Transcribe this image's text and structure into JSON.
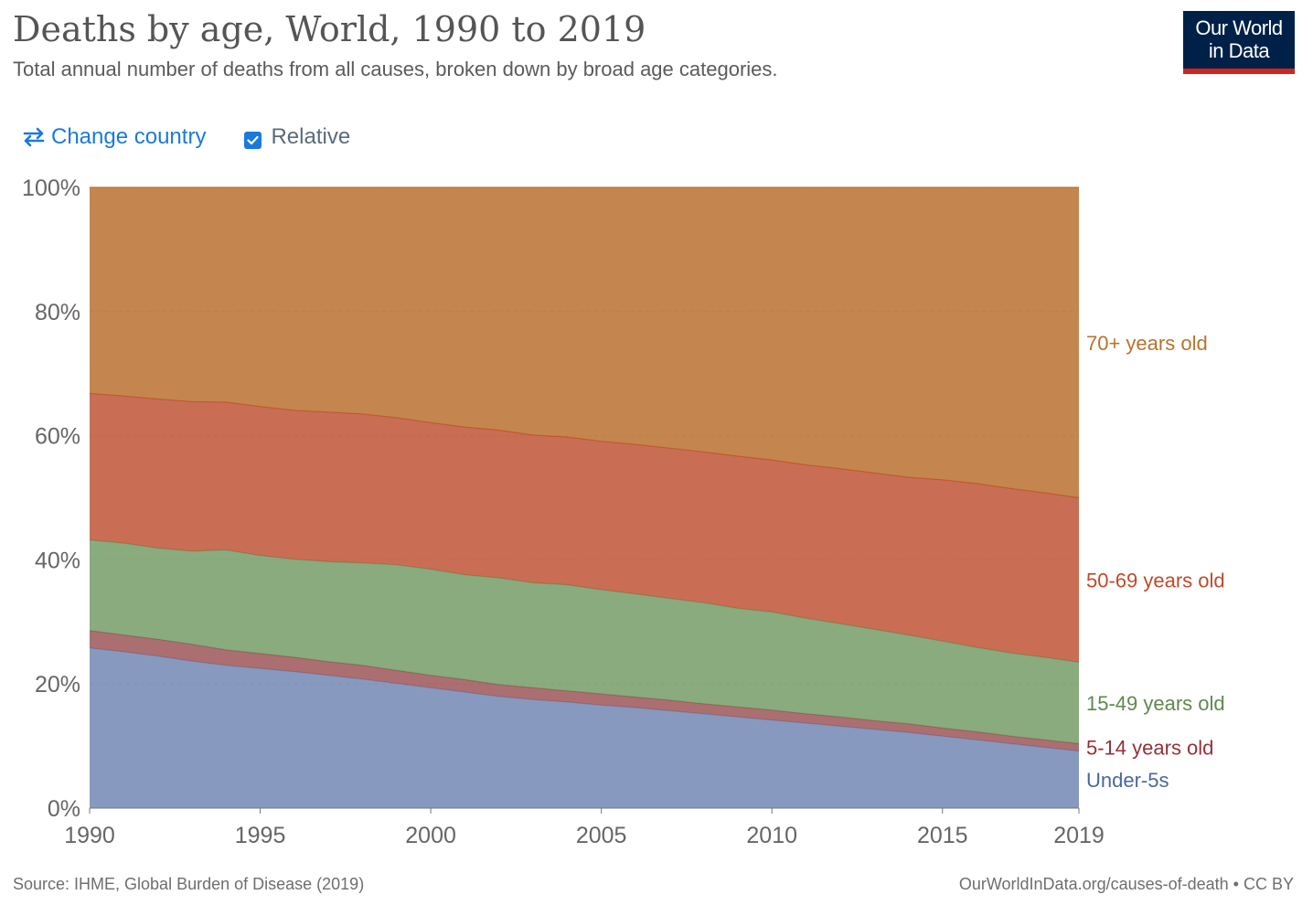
{
  "header": {
    "title": "Deaths by age, World, 1990 to 2019",
    "subtitle": "Total annual number of deaths from all causes, broken down by broad age categories.",
    "logo_line1": "Our World",
    "logo_line2": "in Data"
  },
  "controls": {
    "change_country_label": "Change country",
    "relative_label": "Relative",
    "relative_checked": true
  },
  "footer": {
    "source": "Source: IHME, Global Burden of Disease (2019)",
    "credit": "OurWorldInData.org/causes-of-death • CC BY"
  },
  "chart_data": {
    "type": "area",
    "stacked": true,
    "relative": true,
    "ylim": [
      0,
      100
    ],
    "y_ticks": [
      0,
      20,
      40,
      60,
      80,
      100
    ],
    "y_tick_labels": [
      "0%",
      "20%",
      "40%",
      "60%",
      "80%",
      "100%"
    ],
    "xlim": [
      1990,
      2019
    ],
    "x_ticks": [
      1990,
      1995,
      2000,
      2005,
      2010,
      2015,
      2019
    ],
    "x_tick_labels": [
      "1990",
      "1995",
      "2000",
      "2005",
      "2010",
      "2015",
      "2019"
    ],
    "x": [
      1990,
      1991,
      1992,
      1993,
      1994,
      1995,
      1996,
      1997,
      1998,
      1999,
      2000,
      2001,
      2002,
      2003,
      2004,
      2005,
      2006,
      2007,
      2008,
      2009,
      2010,
      2011,
      2012,
      2013,
      2014,
      2015,
      2016,
      2017,
      2018,
      2019
    ],
    "series": [
      {
        "name": "Under-5s",
        "color": "#6d83b0",
        "values": [
          25.8,
          25.2,
          24.5,
          23.7,
          23.0,
          22.5,
          22.0,
          21.4,
          20.8,
          20.1,
          19.4,
          18.7,
          18.0,
          17.5,
          17.1,
          16.6,
          16.2,
          15.7,
          15.2,
          14.7,
          14.2,
          13.7,
          13.2,
          12.7,
          12.2,
          11.6,
          11.0,
          10.4,
          9.8,
          9.2
        ]
      },
      {
        "name": "5-14 years old",
        "color": "#9a4f52",
        "values": [
          2.8,
          2.7,
          2.7,
          2.7,
          2.5,
          2.4,
          2.3,
          2.2,
          2.2,
          2.1,
          2.0,
          2.0,
          1.9,
          1.9,
          1.8,
          1.8,
          1.7,
          1.7,
          1.6,
          1.6,
          1.6,
          1.5,
          1.5,
          1.4,
          1.4,
          1.3,
          1.3,
          1.2,
          1.2,
          1.2
        ]
      },
      {
        "name": "15-49 years old",
        "color": "#6f9962",
        "values": [
          14.6,
          14.8,
          14.7,
          15.0,
          16.1,
          15.8,
          15.8,
          16.1,
          16.5,
          17.0,
          17.1,
          16.9,
          17.2,
          16.9,
          17.1,
          16.8,
          16.6,
          16.4,
          16.3,
          15.9,
          15.8,
          15.4,
          15.0,
          14.7,
          14.3,
          14.0,
          13.6,
          13.4,
          13.3,
          13.1
        ]
      },
      {
        "name": "50-69 years old",
        "color": "#bd4e2f",
        "values": [
          23.6,
          23.7,
          24.0,
          24.1,
          23.8,
          24.0,
          24.0,
          24.1,
          24.0,
          23.7,
          23.6,
          23.8,
          23.8,
          23.8,
          23.8,
          23.9,
          24.1,
          24.2,
          24.3,
          24.5,
          24.5,
          24.7,
          25.0,
          25.2,
          25.4,
          26.0,
          26.4,
          26.5,
          26.5,
          26.5
        ]
      },
      {
        "name": "70+ years old",
        "color": "#b86a27",
        "values": [
          33.2,
          33.6,
          34.1,
          34.5,
          34.6,
          35.3,
          35.9,
          36.2,
          36.5,
          37.1,
          37.9,
          38.6,
          39.1,
          39.9,
          40.2,
          40.9,
          41.4,
          42.0,
          42.6,
          43.3,
          43.9,
          44.7,
          45.3,
          46.0,
          46.7,
          47.1,
          47.7,
          48.5,
          49.2,
          50.0
        ]
      }
    ],
    "legend_placement": "right, inline labels"
  }
}
